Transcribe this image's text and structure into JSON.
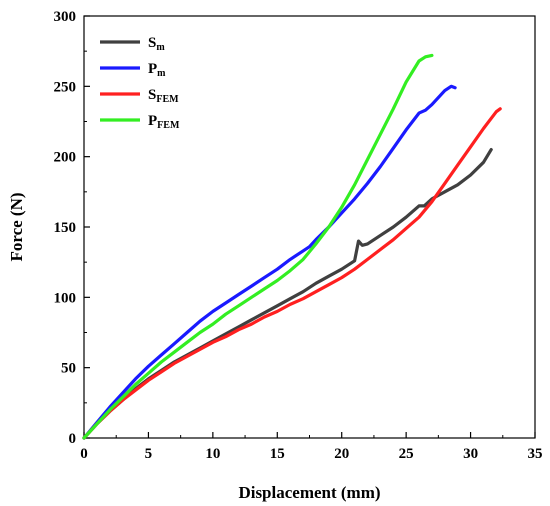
{
  "chart_data": {
    "type": "line",
    "xlabel": "Displacement (mm)",
    "ylabel": "Force (N)",
    "xlim": [
      0,
      35
    ],
    "ylim": [
      0,
      300
    ],
    "xticks": [
      0,
      5,
      10,
      15,
      20,
      25,
      30,
      35
    ],
    "yticks": [
      0,
      50,
      100,
      150,
      200,
      250,
      300
    ],
    "grid": false,
    "legend_position": "top-left",
    "series": [
      {
        "name": "Sm",
        "name_main": "S",
        "name_sub": "m",
        "color": "#404040",
        "x": [
          0,
          1,
          2,
          3,
          4,
          5,
          6,
          7,
          8,
          9,
          10,
          11,
          12,
          13,
          14,
          15,
          16,
          17,
          18,
          19,
          20,
          21,
          21.3,
          21.6,
          22,
          23,
          24,
          25,
          26,
          26.4,
          27,
          28,
          29,
          30,
          31,
          31.6
        ],
        "y": [
          0,
          10,
          19,
          27,
          35,
          42,
          48,
          54,
          59,
          64,
          69,
          74,
          79,
          84,
          89,
          94,
          99,
          104,
          110,
          115,
          120,
          126,
          140,
          137,
          138,
          144,
          150,
          157,
          165,
          165,
          170,
          175,
          180,
          187,
          196,
          205
        ]
      },
      {
        "name": "Pm",
        "name_main": "P",
        "name_sub": "m",
        "color": "#1a1aff",
        "x": [
          0,
          1,
          2,
          3,
          4,
          5,
          6,
          7,
          8,
          9,
          10,
          11,
          12,
          13,
          14,
          15,
          16,
          17,
          17.5,
          18,
          19,
          20,
          21,
          22,
          23,
          24,
          25,
          26,
          26.5,
          27,
          28,
          28.5,
          28.8
        ],
        "y": [
          0,
          11,
          22,
          32,
          42,
          51,
          59,
          67,
          75,
          83,
          90,
          96,
          102,
          108,
          114,
          120,
          127,
          133,
          136,
          141,
          150,
          160,
          170,
          181,
          193,
          206,
          219,
          231,
          233,
          237,
          247,
          250,
          249
        ]
      },
      {
        "name": "SFEM",
        "name_main": "S",
        "name_sub": "FEM",
        "color": "#ff2020",
        "x": [
          0,
          1,
          2,
          3,
          4,
          5,
          6,
          7,
          8,
          9,
          10,
          11,
          12,
          13,
          14,
          15,
          16,
          17,
          18,
          19,
          20,
          21,
          22,
          23,
          24,
          25,
          26,
          27,
          28,
          29,
          30,
          31,
          32,
          32.3
        ],
        "y": [
          0,
          10,
          19,
          27,
          34,
          41,
          47,
          53,
          58,
          63,
          68,
          72,
          77,
          81,
          86,
          90,
          95,
          99,
          104,
          109,
          114,
          120,
          127,
          134,
          141,
          149,
          157,
          168,
          181,
          194,
          207,
          220,
          232,
          234
        ]
      },
      {
        "name": "PFEM",
        "name_main": "P",
        "name_sub": "FEM",
        "color": "#33ee22",
        "x": [
          0,
          1,
          2,
          3,
          4,
          5,
          6,
          7,
          8,
          9,
          10,
          11,
          12,
          13,
          14,
          15,
          16,
          17,
          18,
          19,
          20,
          21,
          22,
          23,
          24,
          25,
          26,
          26.5,
          27
        ],
        "y": [
          0,
          10,
          20,
          29,
          38,
          46,
          54,
          61,
          68,
          75,
          81,
          88,
          94,
          100,
          106,
          112,
          119,
          127,
          138,
          150,
          164,
          180,
          198,
          216,
          234,
          253,
          268,
          271,
          272
        ]
      }
    ]
  }
}
